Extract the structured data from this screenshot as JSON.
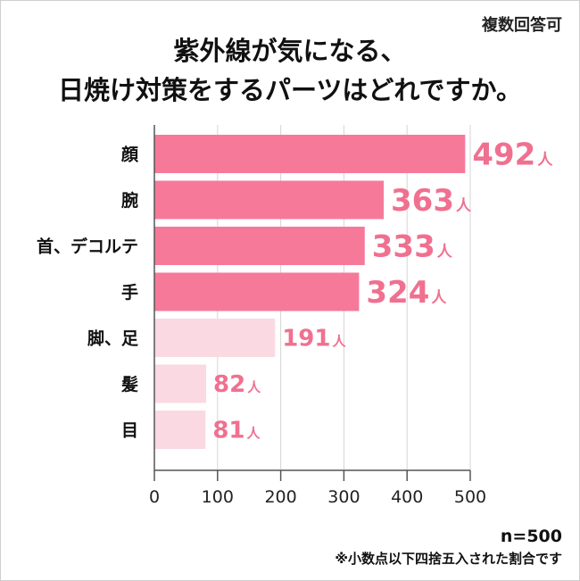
{
  "note_top": "複数回答可",
  "title_lines": [
    "紫外線が気になる、",
    "日焼け対策をするパーツはどれですか。"
  ],
  "n_label": "n=500",
  "footnote": "※小数点以下四捨五入された割合です",
  "colors": {
    "highlight": "#f6799a",
    "muted": "#fbd9e2",
    "label": "#f07090",
    "grid": "#d5d5d5",
    "axis": "#555555"
  },
  "chart_data": {
    "type": "bar",
    "orientation": "horizontal",
    "title": "紫外線が気になる、日焼け対策をするパーツはどれですか。",
    "categories": [
      "顔",
      "腕",
      "首、デコルテ",
      "手",
      "脚、足",
      "髪",
      "目"
    ],
    "values": [
      492,
      363,
      333,
      324,
      191,
      82,
      81
    ],
    "value_unit": "人",
    "highlighted": [
      true,
      true,
      true,
      true,
      false,
      false,
      false
    ],
    "xlim": [
      0,
      500
    ],
    "xticks": [
      0,
      100,
      200,
      300,
      400,
      500
    ],
    "grid": true
  }
}
